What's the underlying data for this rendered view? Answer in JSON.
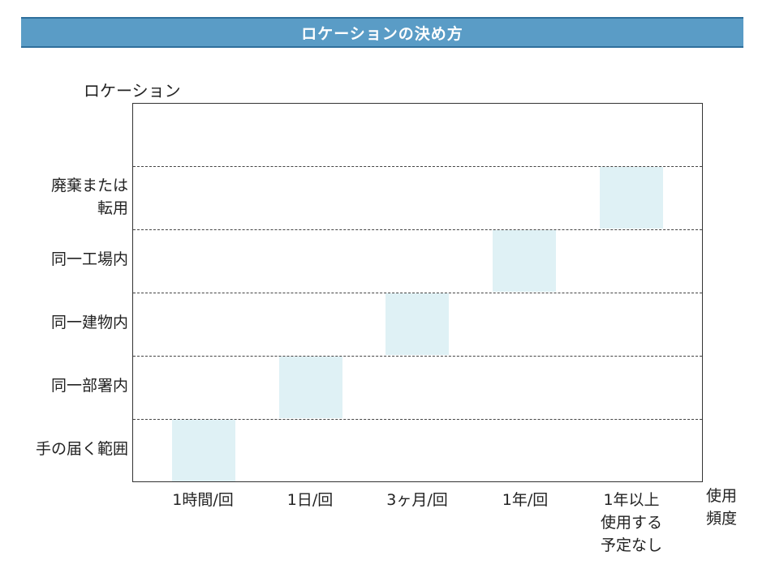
{
  "header": {
    "title": "ロケーションの決め方"
  },
  "axes": {
    "y_title": "ロケーション",
    "x_title": "使用\n頻度"
  },
  "locations": [
    "手の届く範囲",
    "同一部署内",
    "同一建物内",
    "同一工場内",
    "廃棄または\n転用"
  ],
  "frequencies": [
    "1時間/回",
    "1日/回",
    "3ヶ月/回",
    "1年/回",
    "1年以上\n使用する\n予定なし"
  ],
  "chart_data": {
    "type": "heatmap",
    "title": "ロケーションの決め方",
    "xlabel": "使用頻度",
    "ylabel": "ロケーション",
    "x_categories": [
      "1時間/回",
      "1日/回",
      "3ヶ月/回",
      "1年/回",
      "1年以上使用する予定なし"
    ],
    "y_categories": [
      "手の届く範囲",
      "同一部署内",
      "同一建物内",
      "同一工場内",
      "廃棄または転用"
    ],
    "cells": [
      {
        "x": "1時間/回",
        "y": "手の届く範囲"
      },
      {
        "x": "1日/回",
        "y": "同一部署内"
      },
      {
        "x": "3ヶ月/回",
        "y": "同一建物内"
      },
      {
        "x": "1年/回",
        "y": "同一工場内"
      },
      {
        "x": "1年以上使用する予定なし",
        "y": "廃棄または転用"
      }
    ],
    "cell_color": "#dff1f5"
  }
}
